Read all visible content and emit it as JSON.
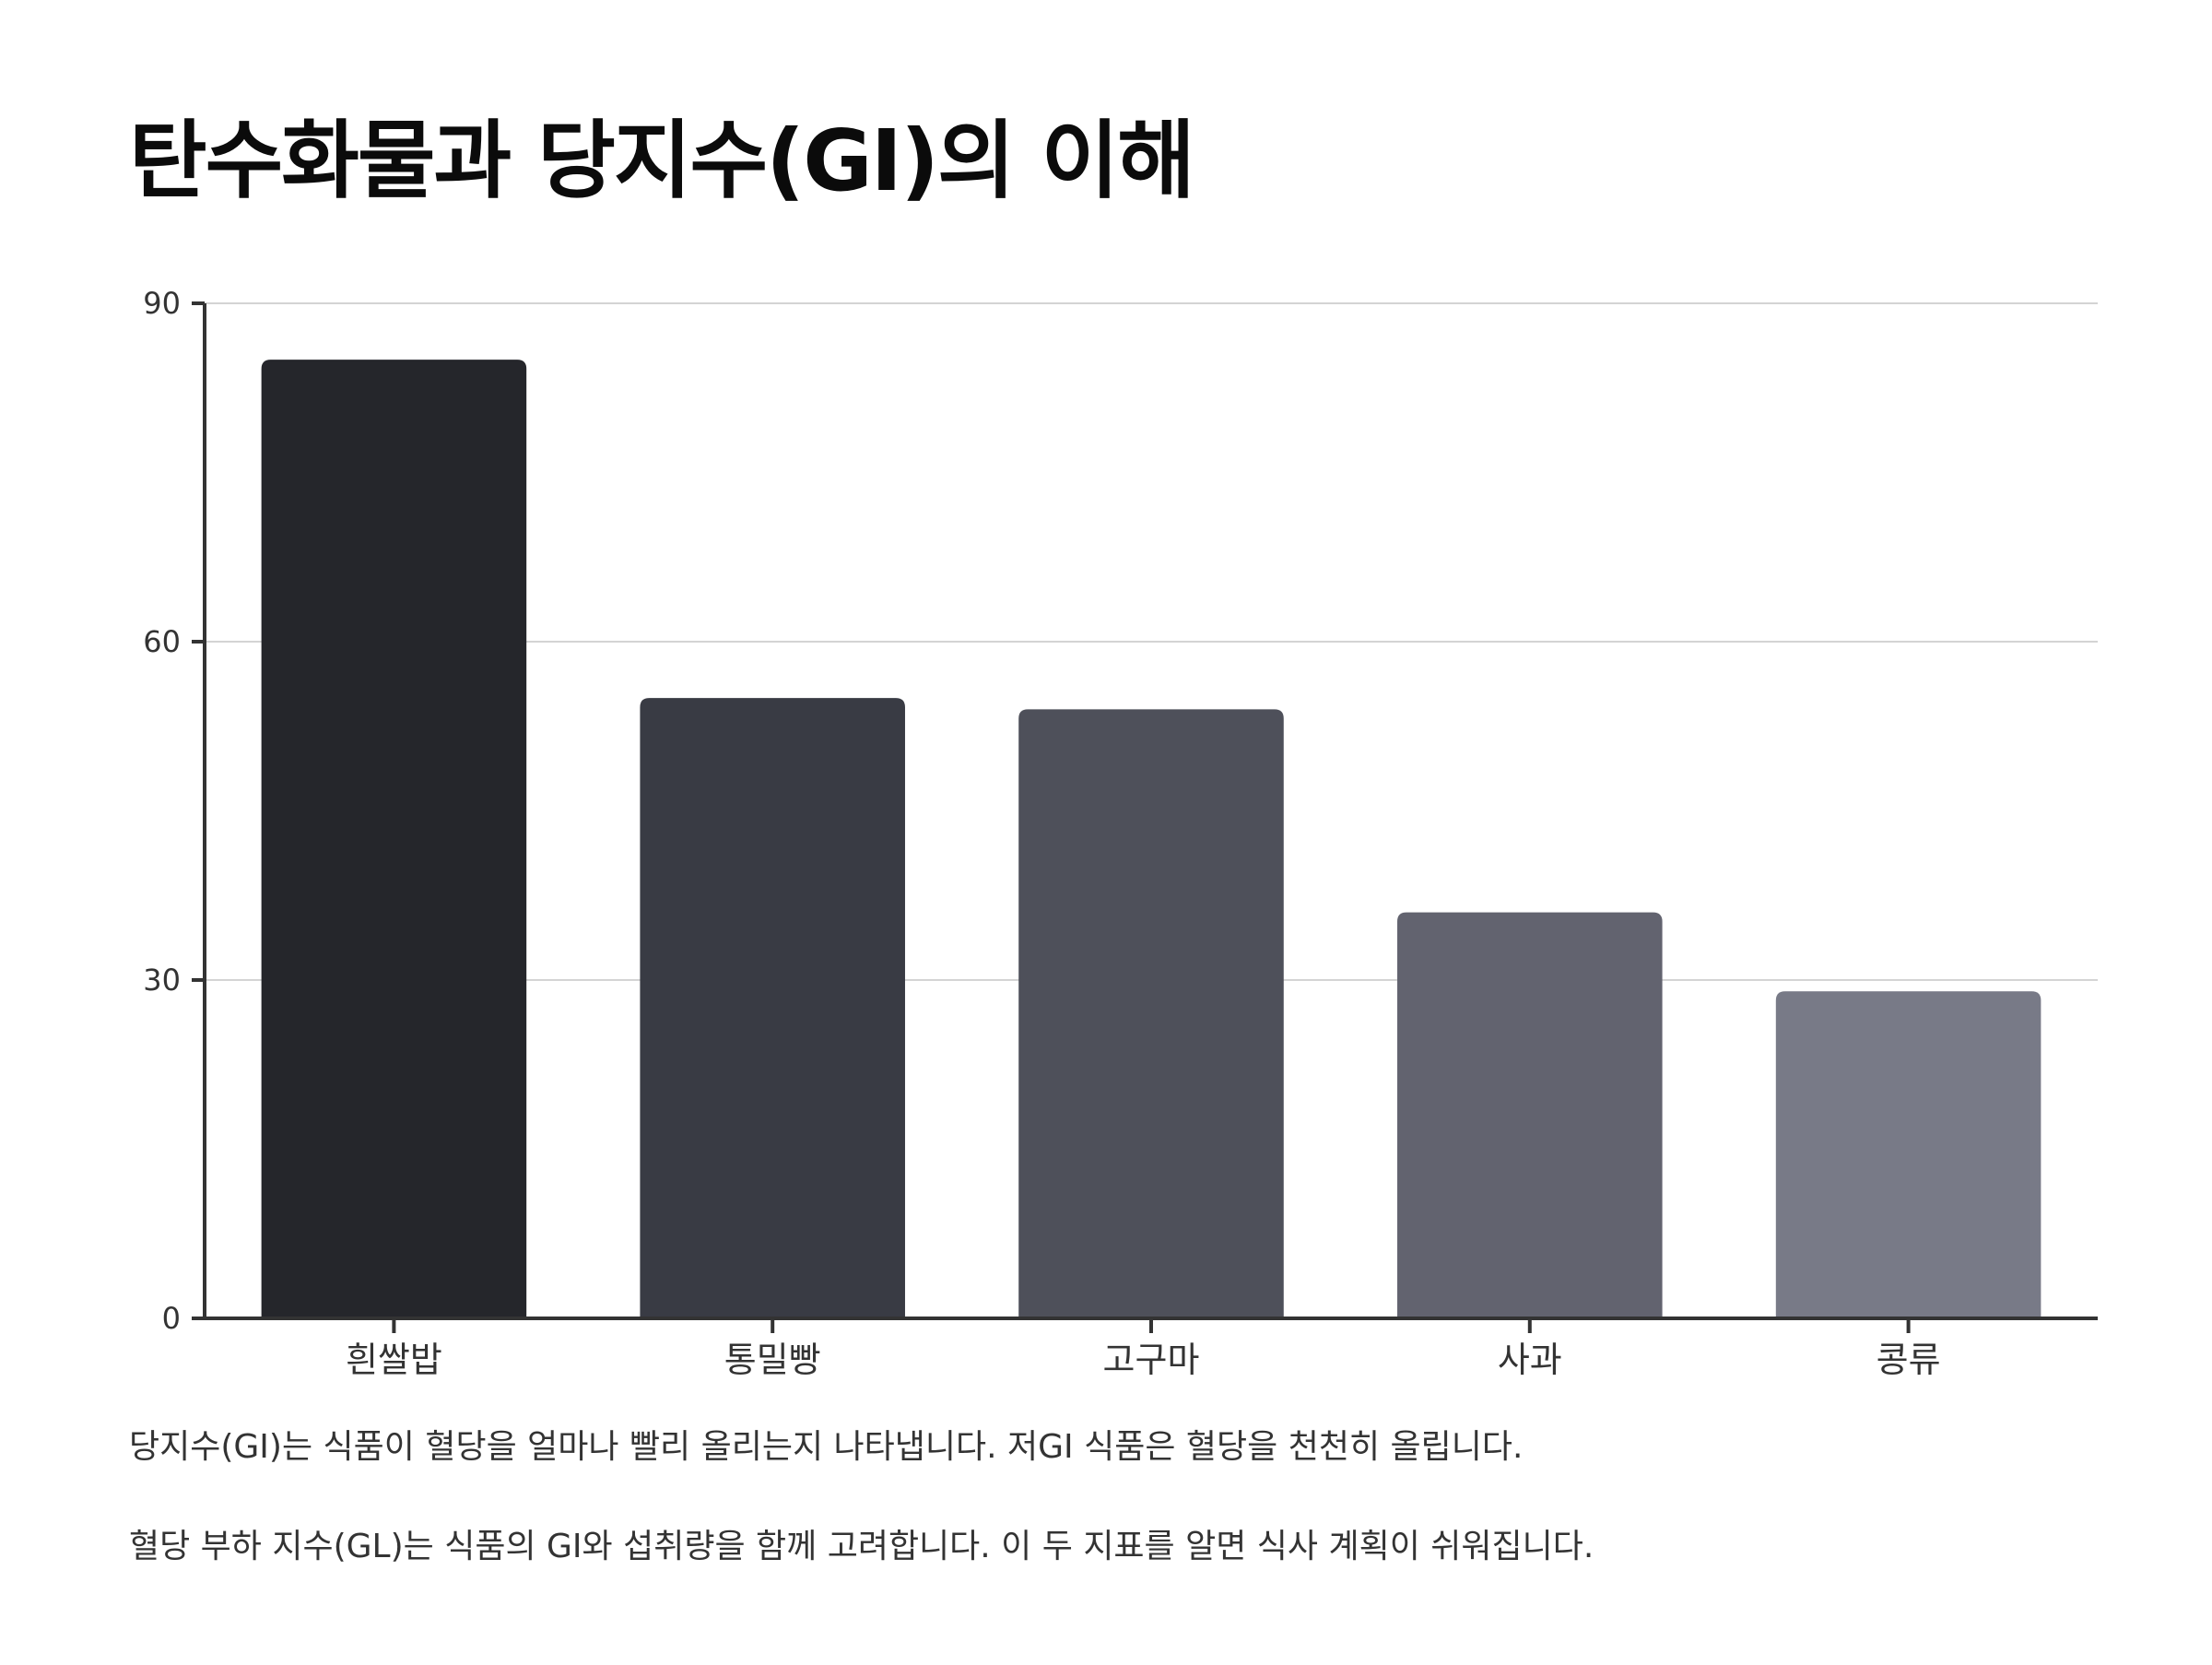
{
  "title": "탄수화물과 당지수(GI)의 이해",
  "chart_data": {
    "type": "bar",
    "categories": [
      "흰쌀밥",
      "통밀빵",
      "고구마",
      "사과",
      "콩류"
    ],
    "values": [
      85,
      55,
      54,
      36,
      29
    ],
    "colors": [
      "#25262b",
      "#393b44",
      "#4e505a",
      "#62636f",
      "#787a87"
    ],
    "ylim": [
      0,
      90
    ],
    "yticks": [
      0,
      30,
      60,
      90
    ],
    "grid": true,
    "xlabel": "",
    "ylabel": ""
  },
  "notes": [
    "당지수(GI)는 식품이 혈당을 얼마나 빨리 올리는지 나타냅니다. 저GI 식품은 혈당을 천천히 올립니다.",
    "혈당 부하 지수(GL)는 식품의 GI와 섭취량을 함께 고려합니다. 이 두 지표를 알면 식사 계획이 쉬워집니다."
  ]
}
